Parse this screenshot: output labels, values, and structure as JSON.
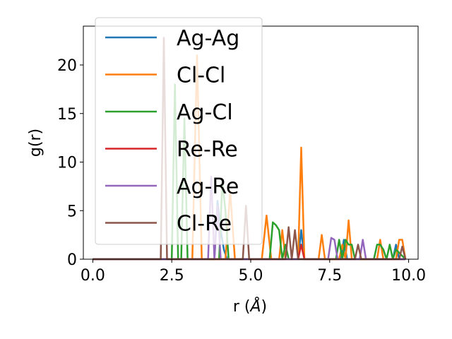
{
  "chart_data": {
    "type": "line",
    "xlabel_main": "r (",
    "xlabel_unit": "Å",
    "xlabel_close": ")",
    "ylabel": "g(r)",
    "xlim": [
      -0.3,
      10.3
    ],
    "ylim": [
      0,
      24
    ],
    "xticks": [
      0.0,
      2.5,
      5.0,
      7.5,
      10.0
    ],
    "xtick_labels": [
      "0.0",
      "2.5",
      "5.0",
      "7.5",
      "10.0"
    ],
    "yticks": [
      0,
      5,
      10,
      15,
      20
    ],
    "ytick_labels": [
      "0",
      "5",
      "10",
      "15",
      "20"
    ],
    "grid": false,
    "legend_position": "upper-left",
    "series": [
      {
        "name": "Ag-Ag",
        "color": "#1f77b4",
        "x": [
          0,
          3.85,
          3.95,
          4.05,
          4.15,
          4.25,
          6.5,
          6.6,
          6.7,
          7.85,
          7.95,
          8.05,
          9.5,
          9.6,
          9.7,
          9.9
        ],
        "y": [
          0,
          0,
          6.0,
          3.0,
          1.0,
          0,
          0,
          3.0,
          0,
          0,
          2.0,
          0,
          0,
          1.5,
          0,
          0
        ]
      },
      {
        "name": "Cl-Cl",
        "color": "#ff7f0e",
        "x": [
          0,
          3.15,
          3.3,
          3.45,
          4.2,
          4.35,
          4.5,
          5.35,
          5.5,
          5.65,
          5.9,
          6.0,
          6.1,
          6.5,
          6.6,
          6.7,
          7.15,
          7.25,
          7.35,
          7.8,
          7.9,
          8.0,
          8.1,
          8.2,
          8.3,
          9.0,
          9.1,
          9.2,
          9.6,
          9.7,
          9.8,
          9.9
        ],
        "y": [
          0,
          0,
          21.0,
          0,
          0,
          7.0,
          0,
          0,
          4.5,
          0,
          0,
          3.0,
          0,
          0,
          11.5,
          0,
          0,
          2.5,
          0,
          0,
          1.5,
          0,
          4.0,
          0,
          0,
          0,
          2.0,
          0,
          0,
          2.0,
          2.0,
          0
        ]
      },
      {
        "name": "Ag-Cl",
        "color": "#2ca02c",
        "x": [
          0,
          2.5,
          2.6,
          2.7,
          2.8,
          2.9,
          3.0,
          3.1,
          4.0,
          4.1,
          4.2,
          4.3,
          5.6,
          5.7,
          5.8,
          5.9,
          6.0,
          6.1,
          6.2,
          7.7,
          7.8,
          7.9,
          8.0,
          8.1,
          8.2,
          8.3,
          8.9,
          9.0,
          9.1,
          9.2,
          9.3,
          9.4,
          9.5,
          9.6,
          9.9
        ],
        "y": [
          0,
          0,
          18.0,
          0,
          0,
          14.5,
          0,
          0,
          0,
          8.0,
          5.0,
          0,
          0,
          3.8,
          3.5,
          3.0,
          0,
          1.5,
          0,
          0,
          2.0,
          0,
          2.0,
          1.5,
          1.5,
          0,
          0,
          1.5,
          1.5,
          1.0,
          0,
          1.5,
          0,
          1.0,
          0
        ]
      },
      {
        "name": "Re-Re",
        "color": "#d62728",
        "x": [
          0,
          6.5,
          6.6,
          6.7,
          9.9
        ],
        "y": [
          0,
          0,
          1.5,
          0,
          0
        ]
      },
      {
        "name": "Ag-Re",
        "color": "#9467bd",
        "x": [
          0,
          3.65,
          3.75,
          3.85,
          3.95,
          4.05,
          7.45,
          7.55,
          7.65,
          7.75,
          8.45,
          8.55,
          8.65,
          9.9
        ],
        "y": [
          0,
          0,
          8.5,
          0,
          5.5,
          0,
          0,
          2.2,
          2.0,
          0,
          0,
          2.0,
          0,
          0
        ]
      },
      {
        "name": "Cl-Re",
        "color": "#8c564b",
        "x": [
          0,
          2.15,
          2.25,
          2.35,
          4.75,
          4.85,
          4.95,
          6.1,
          6.2,
          6.3,
          6.4,
          6.5,
          8.3,
          8.4,
          8.5,
          9.7,
          9.8,
          9.9
        ],
        "y": [
          0,
          0,
          22.8,
          0,
          0,
          5.5,
          0,
          0,
          3.3,
          0,
          3.0,
          0,
          0,
          1.5,
          0,
          0,
          1.3,
          0
        ]
      }
    ]
  }
}
